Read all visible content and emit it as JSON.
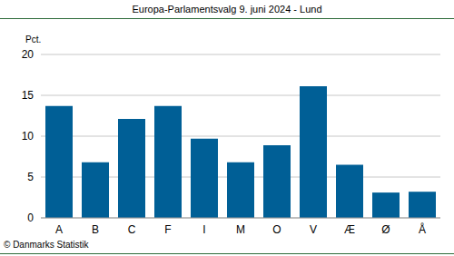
{
  "chart_data": {
    "type": "bar",
    "title": "Europa-Parlamentsvalg 9. juni 2024 - Lund",
    "y_label": "Pct.",
    "annotations": [
      "© Danmarks Statistik"
    ],
    "categories": [
      "A",
      "B",
      "C",
      "F",
      "I",
      "M",
      "O",
      "V",
      "Æ",
      "Ø",
      "Å"
    ],
    "values": [
      13.7,
      6.8,
      12.1,
      13.7,
      9.7,
      6.8,
      8.9,
      16.1,
      6.5,
      3.1,
      3.2
    ],
    "color": "#005f96",
    "ylim": [
      0,
      20
    ],
    "yticks": [
      0,
      5,
      10,
      15,
      20
    ],
    "grid": true
  }
}
